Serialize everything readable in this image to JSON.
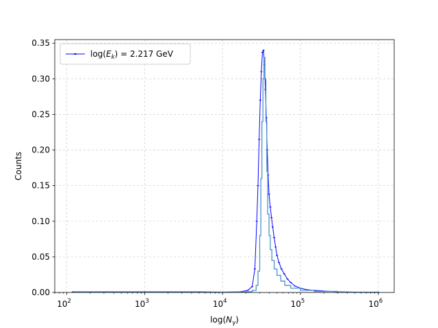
{
  "chart_data": {
    "type": "line",
    "xscale": "log",
    "xlim": [
      70,
      1600000
    ],
    "ylim": [
      0,
      0.355
    ],
    "grid": true,
    "legend_placement": "upper-left",
    "xlabel_parts": {
      "prefix": "log(",
      "var": "N",
      "sub": "γ",
      "suffix": ")"
    },
    "ylabel": "Counts",
    "xticks": [
      {
        "value": 100,
        "base": "10",
        "exp": "2"
      },
      {
        "value": 1000,
        "base": "10",
        "exp": "3"
      },
      {
        "value": 10000,
        "base": "10",
        "exp": "4"
      },
      {
        "value": 100000,
        "base": "10",
        "exp": "5"
      },
      {
        "value": 1000000,
        "base": "10",
        "exp": "6"
      }
    ],
    "yticks": [
      "0.00",
      "0.05",
      "0.10",
      "0.15",
      "0.20",
      "0.25",
      "0.30",
      "0.35"
    ],
    "legend": {
      "prefix": "log(",
      "var": "E",
      "sub": "k",
      "suffix": ") = 2.217 GeV"
    },
    "series": [
      {
        "style": "line-markers",
        "color": "#0000ff",
        "x": [
          120,
          1000,
          5000,
          10000,
          17000,
          21000,
          24000,
          26000,
          27500,
          28500,
          29500,
          30500,
          31500,
          32500,
          33500,
          34500,
          35500,
          36500,
          37500,
          38500,
          39500,
          41000,
          42500,
          44000,
          46000,
          48000,
          50000,
          53000,
          57000,
          62000,
          68000,
          75000,
          85000,
          100000,
          120000,
          150000,
          200000,
          300000,
          500000,
          1000000
        ],
        "y": [
          0.001,
          0.001,
          0.001,
          0.0005,
          0.001,
          0.003,
          0.008,
          0.033,
          0.1,
          0.15,
          0.215,
          0.27,
          0.31,
          0.337,
          0.34,
          0.32,
          0.285,
          0.245,
          0.2,
          0.165,
          0.138,
          0.12,
          0.105,
          0.092,
          0.077,
          0.064,
          0.052,
          0.042,
          0.033,
          0.026,
          0.019,
          0.014,
          0.009,
          0.006,
          0.004,
          0.003,
          0.002,
          0.001,
          0.0005,
          0.0002
        ]
      },
      {
        "style": "step",
        "color": "#4a90c8",
        "x": [
          120,
          10000,
          20000,
          24000,
          27000,
          28500,
          30000,
          31000,
          32000,
          33000,
          34000,
          35000,
          36000,
          37000,
          38000,
          39500,
          41000,
          43000,
          46000,
          50000,
          56000,
          63000,
          75000,
          100000,
          150000,
          300000,
          1000000
        ],
        "y": [
          0.0005,
          0.0005,
          0.001,
          0.003,
          0.01,
          0.03,
          0.08,
          0.16,
          0.24,
          0.3,
          0.33,
          0.3,
          0.24,
          0.17,
          0.11,
          0.08,
          0.06,
          0.045,
          0.033,
          0.024,
          0.016,
          0.01,
          0.006,
          0.003,
          0.0015,
          0.0005,
          0.0002
        ]
      }
    ]
  }
}
